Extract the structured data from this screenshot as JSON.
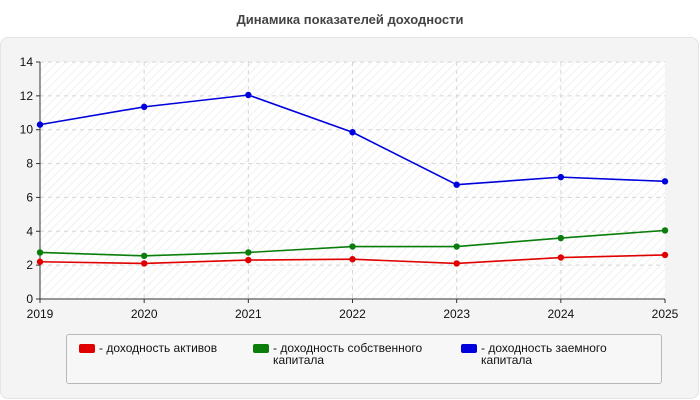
{
  "title": "Динамика показателей доходности",
  "chart_data": {
    "type": "line",
    "title": "Динамика показателей доходности",
    "xlabel": "",
    "ylabel": "",
    "x": [
      "2019",
      "2020",
      "2021",
      "2022",
      "2023",
      "2024",
      "2025"
    ],
    "ylim": [
      0,
      14
    ],
    "yticks": [
      0,
      2,
      4,
      6,
      8,
      10,
      12,
      14
    ],
    "grid": true,
    "legend_position": "bottom",
    "series": [
      {
        "name": "- доходность активов",
        "color": "#e00000",
        "values": [
          2.2,
          2.1,
          2.3,
          2.35,
          2.1,
          2.45,
          2.6
        ]
      },
      {
        "name": "- доходность собственного капитала",
        "color": "#0a7d0a",
        "values": [
          2.75,
          2.55,
          2.75,
          3.1,
          3.1,
          3.6,
          4.05
        ]
      },
      {
        "name": "- доходность заемного капитала",
        "color": "#0000dd",
        "values": [
          10.3,
          11.35,
          12.05,
          9.85,
          6.75,
          7.2,
          6.95
        ]
      }
    ]
  }
}
